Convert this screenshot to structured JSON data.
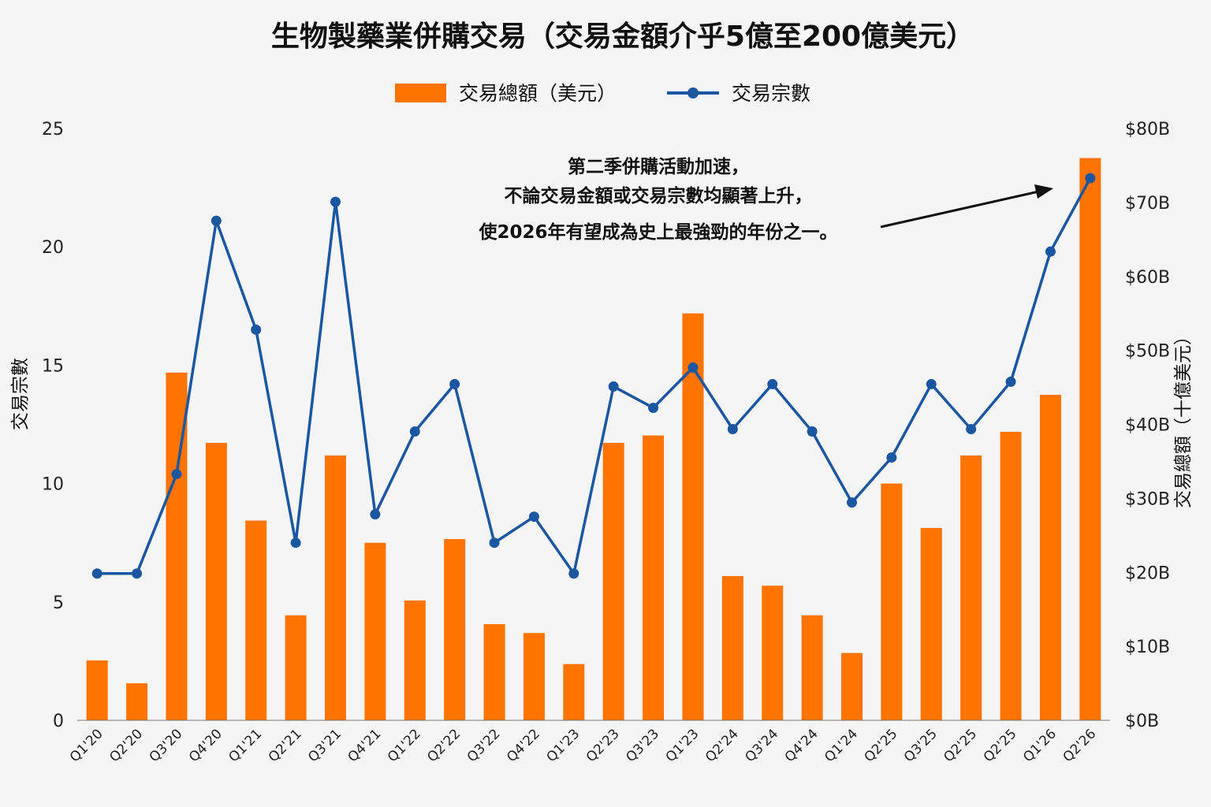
{
  "chart_data": {
    "type": "bar+line",
    "title": "生物製藥業併購交易（交易金額介乎5億至200億美元）",
    "categories": [
      "Q1'20",
      "Q2'20",
      "Q3'20",
      "Q4'20",
      "Q1'21",
      "Q2'21",
      "Q3'21",
      "Q4'21",
      "Q1'22",
      "Q2'22",
      "Q3'22",
      "Q4'22",
      "Q1'23",
      "Q2'23",
      "Q3'23",
      "Q1'23",
      "Q2'24",
      "Q3'24",
      "Q4'24",
      "Q1'24",
      "Q2'25",
      "Q3'25",
      "Q2'25",
      "Q2'25",
      "Q1'26",
      "Q2'26"
    ],
    "series": [
      {
        "name": "交易總額（美元）",
        "type": "bar",
        "axis": "right",
        "color": "#ff7300",
        "values": [
          8.1,
          5.0,
          47.0,
          37.5,
          27.0,
          14.2,
          35.8,
          24.0,
          16.2,
          24.5,
          13.0,
          11.8,
          7.6,
          37.5,
          38.5,
          55.0,
          19.5,
          18.2,
          14.2,
          9.1,
          32.0,
          26.0,
          35.8,
          39.0,
          44.0,
          76.0
        ]
      },
      {
        "name": "交易宗數",
        "type": "line",
        "axis": "left",
        "color": "#1b56a0",
        "values": [
          6.2,
          6.2,
          10.4,
          21.1,
          16.5,
          7.5,
          21.9,
          8.7,
          12.2,
          14.2,
          7.5,
          8.6,
          6.2,
          14.1,
          13.2,
          14.9,
          12.3,
          14.2,
          12.2,
          9.2,
          11.1,
          14.2,
          12.3,
          14.3,
          19.8,
          22.9
        ]
      }
    ],
    "y_left": {
      "label": "交易宗數",
      "range": [
        0,
        25
      ],
      "ticks": [
        "0",
        "5",
        "10",
        "15",
        "20",
        "25"
      ]
    },
    "y_right": {
      "label": "交易總額（十億美元）",
      "range": [
        0,
        80
      ],
      "ticks": [
        "$0B",
        "$10B",
        "$20B",
        "$30B",
        "$40B",
        "$50B",
        "$60B",
        "$70B",
        "$80B"
      ]
    },
    "legend": {
      "placement": "top-center"
    },
    "grid": false,
    "annotation": {
      "lines": [
        "第二季併購活動加速，",
        "不論交易金額或交易宗數均顯著上升，",
        "使2026年有望成為史上最強勁的年份之一。"
      ]
    }
  }
}
